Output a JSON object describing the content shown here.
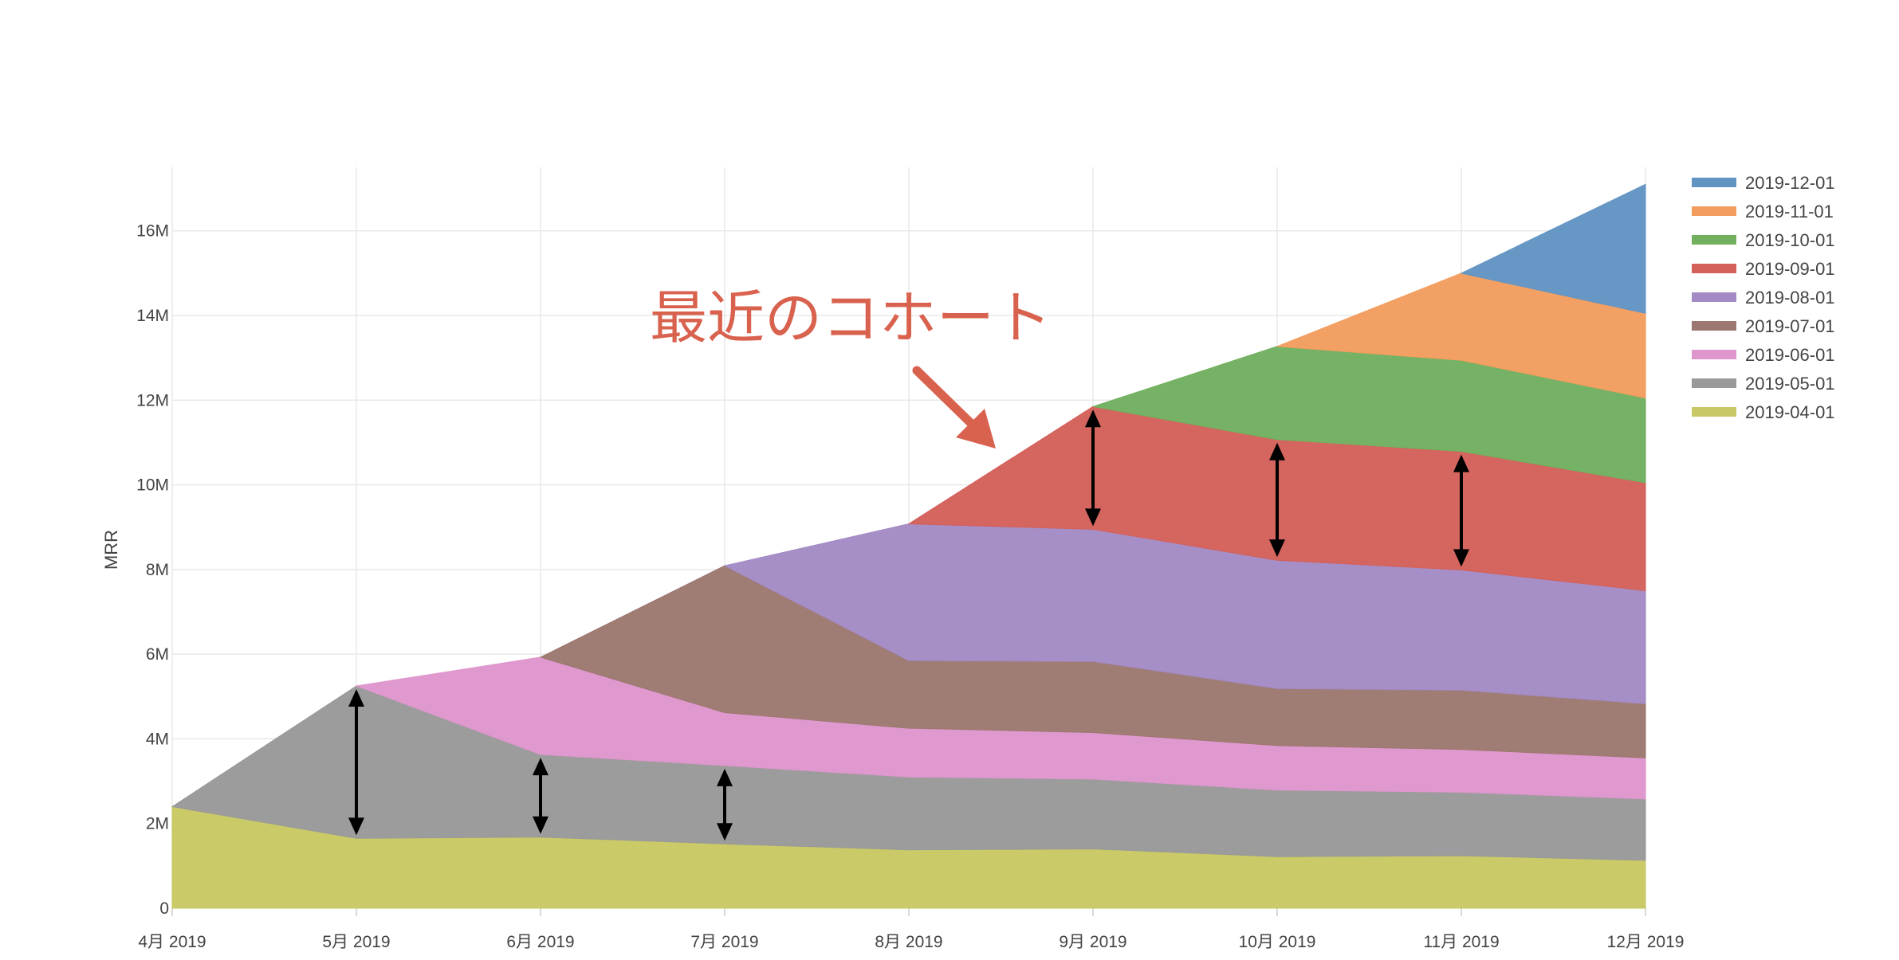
{
  "chart_data": {
    "type": "area",
    "stacked": true,
    "title": "",
    "xlabel": "",
    "ylabel": "MRR",
    "x": [
      "4月 2019",
      "5月 2019",
      "6月 2019",
      "7月 2019",
      "8月 2019",
      "9月 2019",
      "10月 2019",
      "11月 2019",
      "12月 2019"
    ],
    "ylim": [
      0,
      17500000
    ],
    "y_ticks": [
      0,
      2000000,
      4000000,
      6000000,
      8000000,
      10000000,
      12000000,
      14000000,
      16000000
    ],
    "y_tick_labels": [
      "0",
      "2M",
      "4M",
      "6M",
      "8M",
      "10M",
      "12M",
      "14M",
      "16M"
    ],
    "grid": true,
    "legend_position": "top-right",
    "series": [
      {
        "name": "2019-04-01",
        "color": "#c8c864",
        "values": [
          2400000,
          1650000,
          1680000,
          1520000,
          1380000,
          1400000,
          1220000,
          1240000,
          1130000
        ]
      },
      {
        "name": "2019-05-01",
        "color": "#999999",
        "values": [
          0,
          3600000,
          1950000,
          1850000,
          1720000,
          1650000,
          1570000,
          1500000,
          1450000
        ]
      },
      {
        "name": "2019-06-01",
        "color": "#de96cc",
        "values": [
          0,
          0,
          2300000,
          1250000,
          1150000,
          1100000,
          1050000,
          1010000,
          970000
        ]
      },
      {
        "name": "2019-07-01",
        "color": "#9c7870",
        "values": [
          0,
          0,
          0,
          3470000,
          1600000,
          1680000,
          1350000,
          1400000,
          1280000
        ]
      },
      {
        "name": "2019-08-01",
        "color": "#a38ac4",
        "values": [
          0,
          0,
          0,
          0,
          3230000,
          3120000,
          3030000,
          2840000,
          2670000
        ]
      },
      {
        "name": "2019-09-01",
        "color": "#d4605a",
        "values": [
          0,
          0,
          0,
          0,
          0,
          2900000,
          2850000,
          2800000,
          2550000
        ]
      },
      {
        "name": "2019-10-01",
        "color": "#72b060",
        "values": [
          0,
          0,
          0,
          0,
          0,
          0,
          2200000,
          2150000,
          2000000
        ]
      },
      {
        "name": "2019-11-01",
        "color": "#f29d5e",
        "values": [
          0,
          0,
          0,
          0,
          0,
          0,
          0,
          2060000,
          2000000
        ]
      },
      {
        "name": "2019-12-01",
        "color": "#6294c3",
        "values": [
          0,
          0,
          0,
          0,
          0,
          0,
          0,
          0,
          3050000
        ]
      }
    ],
    "annotations": [
      {
        "text": "最近のコホート",
        "color": "#d9624e"
      }
    ]
  }
}
